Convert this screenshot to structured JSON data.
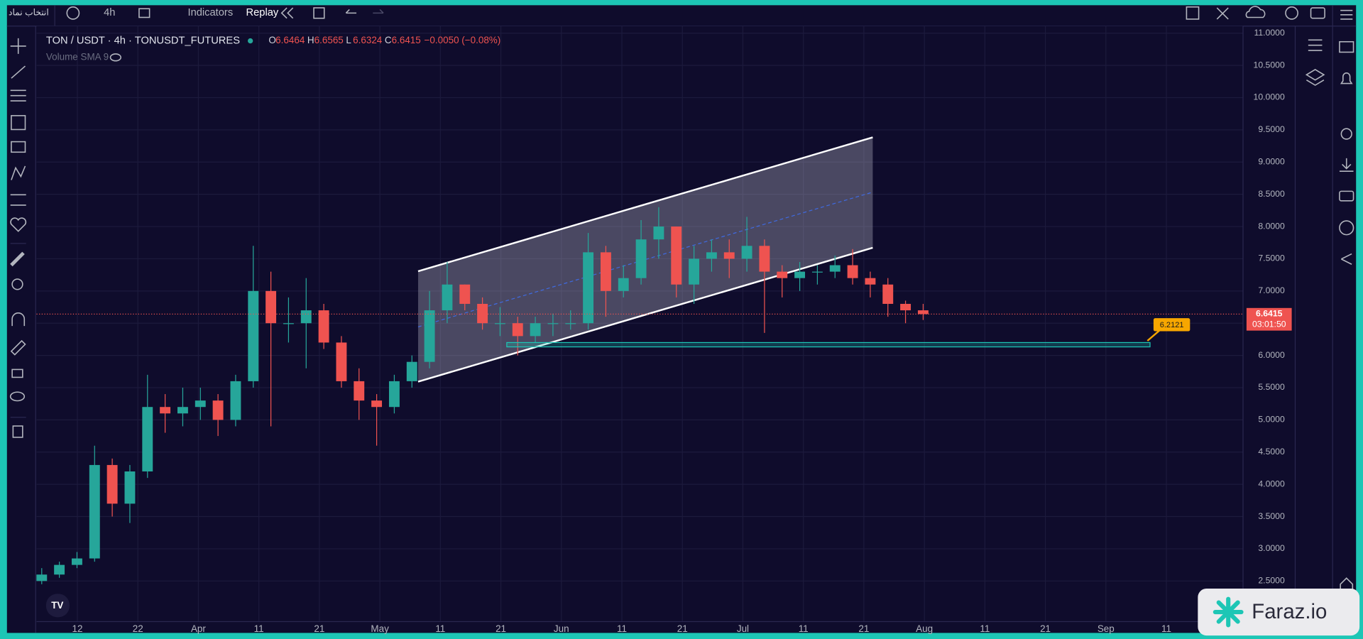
{
  "toolbar": {
    "symbol_button": "انتخاب نماد",
    "interval": "4h",
    "indicators": "Indicators",
    "replay": "Replay"
  },
  "chart_data": {
    "type": "candlestick",
    "title": "TON / USDT · 4h · TONUSDT_FUTURES",
    "ohlc_legend": [
      {
        "label": "O",
        "value": 6.6464
      },
      {
        "label": "H",
        "value": 6.6565
      },
      {
        "label": "L",
        "value": 6.6324
      },
      {
        "label": "C",
        "value": 6.6415
      }
    ],
    "change": "−0.0050 (−0.08%)",
    "indicator": "Volume SMA 9",
    "x_labels": [
      "12",
      "22",
      "Apr",
      "11",
      "21",
      "May",
      "11",
      "21",
      "Jun",
      "11",
      "21",
      "Jul",
      "11",
      "21",
      "Aug",
      "11",
      "21",
      "Sep",
      "11"
    ],
    "open": [
      2.5,
      2.6,
      2.75,
      2.85,
      4.3,
      3.7,
      4.2,
      5.2,
      5.1,
      5.2,
      5.3,
      5.0,
      5.6,
      7.0,
      6.5,
      6.5,
      6.7,
      6.2,
      5.6,
      5.3,
      5.2,
      5.6,
      5.9,
      6.7,
      7.1,
      6.8,
      6.5,
      6.5,
      6.3,
      6.5,
      6.5,
      6.5,
      7.6,
      7.0,
      7.2,
      7.8,
      8.0,
      7.1,
      7.5,
      7.6,
      7.5,
      7.7,
      7.3,
      7.2,
      7.3,
      7.3,
      7.4,
      7.2,
      7.1,
      6.8,
      6.7
    ],
    "high": [
      2.7,
      2.8,
      2.95,
      4.6,
      4.4,
      4.3,
      5.7,
      5.4,
      5.5,
      5.5,
      5.4,
      5.7,
      7.7,
      7.3,
      6.9,
      7.2,
      6.8,
      6.3,
      5.8,
      5.4,
      5.7,
      6.0,
      7.0,
      7.45,
      7.1,
      6.9,
      6.75,
      6.6,
      6.6,
      6.65,
      6.7,
      7.9,
      7.7,
      7.4,
      8.1,
      8.3,
      8.0,
      7.7,
      7.8,
      7.8,
      8.15,
      7.8,
      7.4,
      7.45,
      7.4,
      7.55,
      7.65,
      7.3,
      7.2,
      6.85,
      6.8
    ],
    "low": [
      2.45,
      2.55,
      2.7,
      2.8,
      3.5,
      3.4,
      4.1,
      4.8,
      4.9,
      5.0,
      4.75,
      4.9,
      5.5,
      4.9,
      6.2,
      5.8,
      6.1,
      5.5,
      5.0,
      4.6,
      5.1,
      5.5,
      5.8,
      6.5,
      6.7,
      6.4,
      6.3,
      6.0,
      6.2,
      6.3,
      6.4,
      6.4,
      6.6,
      6.9,
      7.1,
      7.5,
      6.9,
      6.8,
      7.3,
      7.2,
      7.3,
      6.35,
      6.9,
      7.0,
      7.1,
      7.2,
      7.1,
      6.9,
      6.6,
      6.5,
      6.55
    ],
    "close": [
      2.6,
      2.75,
      2.85,
      4.3,
      3.7,
      4.2,
      5.2,
      5.1,
      5.2,
      5.3,
      5.0,
      5.6,
      7.0,
      6.5,
      6.5,
      6.7,
      6.2,
      5.6,
      5.3,
      5.2,
      5.6,
      5.9,
      6.7,
      7.1,
      6.8,
      6.5,
      6.5,
      6.3,
      6.5,
      6.5,
      6.5,
      7.6,
      7.0,
      7.2,
      7.8,
      8.0,
      7.1,
      7.5,
      7.6,
      7.5,
      7.7,
      7.3,
      7.2,
      7.3,
      7.3,
      7.4,
      7.2,
      7.1,
      6.8,
      6.7,
      6.6415
    ],
    "up_color": "#26a69a",
    "down_color": "#ef5350",
    "ylim": [
      1.87,
      11.11
    ],
    "yticks": [
      {
        "value": 11,
        "label": "11.0000"
      },
      {
        "value": 10.5,
        "label": "10.5000"
      },
      {
        "value": 10,
        "label": "10.0000"
      },
      {
        "value": 9.5,
        "label": "9.5000"
      },
      {
        "value": 9,
        "label": "9.0000"
      },
      {
        "value": 8.5,
        "label": "8.5000"
      },
      {
        "value": 8,
        "label": "8.0000"
      },
      {
        "value": 7.5,
        "label": "7.5000"
      },
      {
        "value": 7,
        "label": "7.0000"
      },
      {
        "value": 6.5,
        "label": "6.5000"
      },
      {
        "value": 6,
        "label": "6.0000"
      },
      {
        "value": 5.5,
        "label": "5.5000"
      },
      {
        "value": 5,
        "label": "5.0000"
      },
      {
        "value": 4.5,
        "label": "4.5000"
      },
      {
        "value": 4,
        "label": "4.0000"
      },
      {
        "value": 3.5,
        "label": "3.5000"
      },
      {
        "value": 3,
        "label": "3.0000"
      },
      {
        "value": 2.5,
        "label": "2.5000"
      }
    ],
    "grid": true,
    "last_price": 6.6415,
    "countdown": "03:01:50",
    "zone_label": "6.2121"
  },
  "watermark": "Faraz.io"
}
